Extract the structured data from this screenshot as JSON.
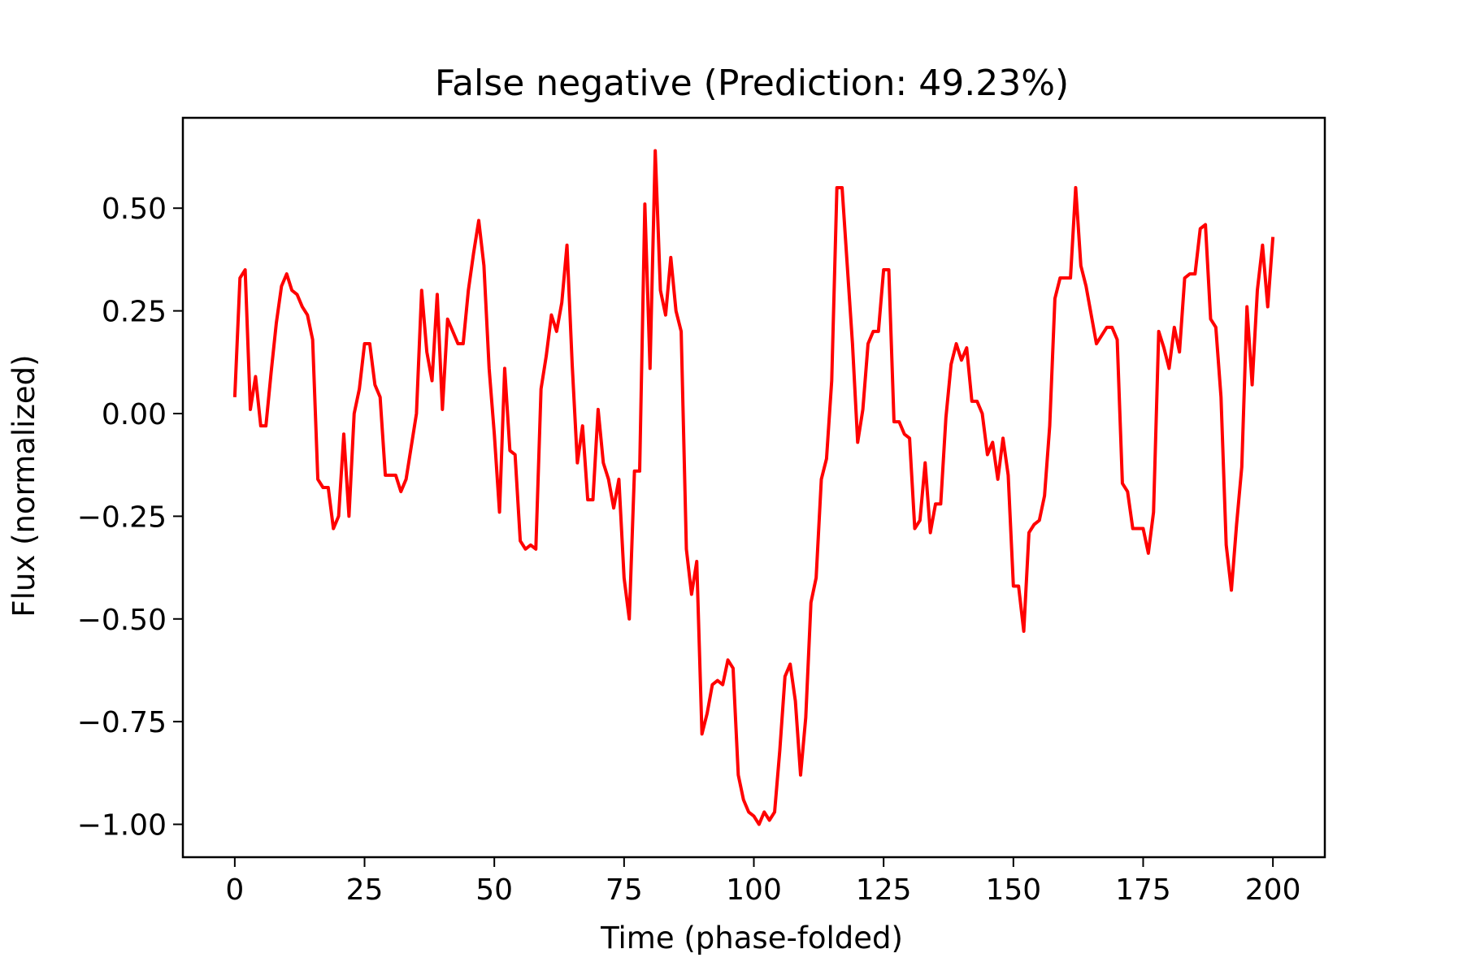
{
  "chart_data": {
    "type": "line",
    "title": "False negative (Prediction: 49.23%)",
    "xlabel": "Time (phase-folded)",
    "ylabel": "Flux (normalized)",
    "xlim": [
      -10,
      210
    ],
    "ylim": [
      -1.08,
      0.72
    ],
    "xticks": [
      0,
      25,
      50,
      75,
      100,
      125,
      150,
      175,
      200
    ],
    "xtick_labels": [
      "0",
      "25",
      "50",
      "75",
      "100",
      "125",
      "150",
      "175",
      "200"
    ],
    "yticks": [
      0.5,
      0.25,
      0.0,
      -0.25,
      -0.5,
      -0.75,
      -1.0
    ],
    "ytick_labels": [
      "0.50",
      "0.25",
      "0.00",
      "−0.25",
      "−0.50",
      "−0.75",
      "−1.00"
    ],
    "grid": false,
    "legend": false,
    "series": [
      {
        "color": "#ff0000",
        "x": [
          0,
          1,
          2,
          3,
          4,
          5,
          6,
          7,
          8,
          9,
          10,
          11,
          12,
          13,
          14,
          15,
          16,
          17,
          18,
          19,
          20,
          21,
          22,
          23,
          24,
          25,
          26,
          27,
          28,
          29,
          30,
          31,
          32,
          33,
          34,
          35,
          36,
          37,
          38,
          39,
          40,
          41,
          42,
          43,
          44,
          45,
          46,
          47,
          48,
          49,
          50,
          51,
          52,
          53,
          54,
          55,
          56,
          57,
          58,
          59,
          60,
          61,
          62,
          63,
          64,
          65,
          66,
          67,
          68,
          69,
          70,
          71,
          72,
          73,
          74,
          75,
          76,
          77,
          78,
          79,
          80,
          81,
          82,
          83,
          84,
          85,
          86,
          87,
          88,
          89,
          90,
          91,
          92,
          93,
          94,
          95,
          96,
          97,
          98,
          99,
          100,
          101,
          102,
          103,
          104,
          105,
          106,
          107,
          108,
          109,
          110,
          111,
          112,
          113,
          114,
          115,
          116,
          117,
          118,
          119,
          120,
          121,
          122,
          123,
          124,
          125,
          126,
          127,
          128,
          129,
          130,
          131,
          132,
          133,
          134,
          135,
          136,
          137,
          138,
          139,
          140,
          141,
          142,
          143,
          144,
          145,
          146,
          147,
          148,
          149,
          150,
          151,
          152,
          153,
          154,
          155,
          156,
          157,
          158,
          159,
          160,
          161,
          162,
          163,
          164,
          165,
          166,
          167,
          168,
          169,
          170,
          171,
          172,
          173,
          174,
          175,
          176,
          177,
          178,
          179,
          180,
          181,
          182,
          183,
          184,
          185,
          186,
          187,
          188,
          189,
          190,
          191,
          192,
          193,
          194,
          195,
          196,
          197,
          198,
          199,
          200
        ],
        "y": [
          0.04,
          0.33,
          0.35,
          0.01,
          0.09,
          -0.03,
          -0.03,
          0.1,
          0.22,
          0.31,
          0.34,
          0.3,
          0.29,
          0.26,
          0.24,
          0.18,
          -0.16,
          -0.18,
          -0.18,
          -0.28,
          -0.25,
          -0.05,
          -0.25,
          0.0,
          0.06,
          0.17,
          0.17,
          0.07,
          0.04,
          -0.15,
          -0.15,
          -0.15,
          -0.19,
          -0.16,
          -0.08,
          0.0,
          0.3,
          0.15,
          0.08,
          0.29,
          0.01,
          0.23,
          0.2,
          0.17,
          0.17,
          0.3,
          0.39,
          0.47,
          0.36,
          0.11,
          -0.05,
          -0.24,
          0.11,
          -0.09,
          -0.1,
          -0.31,
          -0.33,
          -0.32,
          -0.33,
          0.06,
          0.14,
          0.24,
          0.2,
          0.27,
          0.41,
          0.12,
          -0.12,
          -0.03,
          -0.21,
          -0.21,
          0.01,
          -0.12,
          -0.16,
          -0.23,
          -0.16,
          -0.4,
          -0.5,
          -0.14,
          -0.14,
          0.51,
          0.11,
          0.64,
          0.3,
          0.24,
          0.38,
          0.25,
          0.2,
          -0.33,
          -0.44,
          -0.36,
          -0.78,
          -0.73,
          -0.66,
          -0.65,
          -0.66,
          -0.6,
          -0.62,
          -0.88,
          -0.94,
          -0.97,
          -0.98,
          -1.0,
          -0.97,
          -0.99,
          -0.97,
          -0.82,
          -0.64,
          -0.61,
          -0.7,
          -0.88,
          -0.74,
          -0.46,
          -0.4,
          -0.16,
          -0.11,
          0.08,
          0.55,
          0.55,
          0.36,
          0.17,
          -0.07,
          0.01,
          0.17,
          0.2,
          0.2,
          0.35,
          0.35,
          -0.02,
          -0.02,
          -0.05,
          -0.06,
          -0.28,
          -0.26,
          -0.12,
          -0.29,
          -0.22,
          -0.22,
          -0.01,
          0.12,
          0.17,
          0.13,
          0.16,
          0.03,
          0.03,
          0.0,
          -0.1,
          -0.07,
          -0.16,
          -0.06,
          -0.15,
          -0.42,
          -0.42,
          -0.53,
          -0.29,
          -0.27,
          -0.26,
          -0.2,
          -0.03,
          0.28,
          0.33,
          0.33,
          0.33,
          0.55,
          0.36,
          0.31,
          0.24,
          0.17,
          0.19,
          0.21,
          0.21,
          0.18,
          -0.17,
          -0.19,
          -0.28,
          -0.28,
          -0.28,
          -0.34,
          -0.24,
          0.2,
          0.16,
          0.11,
          0.21,
          0.15,
          0.33,
          0.34,
          0.34,
          0.45,
          0.46,
          0.23,
          0.21,
          0.04,
          -0.32,
          -0.43,
          -0.27,
          -0.13,
          0.26,
          0.07,
          0.3,
          0.41,
          0.26,
          0.43
        ]
      }
    ]
  }
}
